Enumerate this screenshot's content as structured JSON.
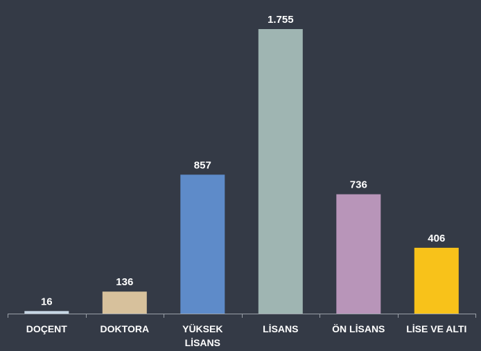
{
  "chart_data": {
    "type": "bar",
    "categories": [
      "DOÇENT",
      "DOKTORA",
      "YÜKSEK LİSANS",
      "LİSANS",
      "ÖN LİSANS",
      "LİSE VE ALTI"
    ],
    "category_lines": [
      [
        "DOÇENT"
      ],
      [
        "DOKTORA"
      ],
      [
        "YÜKSEK",
        "LİSANS"
      ],
      [
        "LİSANS"
      ],
      [
        "ÖN LİSANS"
      ],
      [
        "LİSE VE ALTI"
      ]
    ],
    "values": [
      16,
      136,
      857,
      1755,
      736,
      406
    ],
    "value_labels": [
      "16",
      "136",
      "857",
      "1.755",
      "736",
      "406"
    ],
    "colors": [
      "#c6d6e4",
      "#d7c19c",
      "#5e8bc9",
      "#9fb5b2",
      "#b895b9",
      "#f8c21a"
    ],
    "axis_color": "#9aa0a8",
    "title": "",
    "xlabel": "",
    "ylabel": "",
    "ylim": [
      0,
      1755
    ],
    "grid": false,
    "legend": "none"
  }
}
